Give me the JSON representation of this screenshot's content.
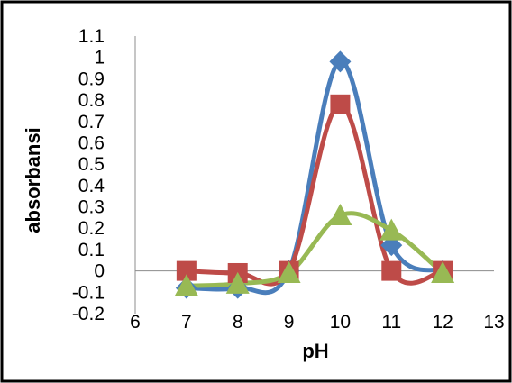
{
  "chart_data": {
    "type": "line",
    "title": "",
    "xlabel": "pH",
    "ylabel": "absorbansi",
    "xlim": [
      6,
      13
    ],
    "ylim": [
      -0.2,
      1.1
    ],
    "x_ticks": [
      "6",
      "7",
      "8",
      "9",
      "10",
      "11",
      "12",
      "13"
    ],
    "y_ticks": [
      "-0.2",
      "-0.1",
      "0",
      "0.1",
      "0.2",
      "0.3",
      "0.4",
      "0.5",
      "0.6",
      "0.7",
      "0.8",
      "0.9",
      "1",
      "1.1"
    ],
    "grid": false,
    "legend": "none",
    "smooth": true,
    "series": [
      {
        "marker": "diamond",
        "color": "#4a7ebb",
        "x": [
          7,
          8,
          9,
          10,
          11,
          12
        ],
        "y": [
          -0.08,
          -0.08,
          0.0,
          0.98,
          0.12,
          0.0
        ]
      },
      {
        "marker": "square",
        "color": "#be4b48",
        "x": [
          7,
          8,
          9,
          10,
          11,
          12
        ],
        "y": [
          0.0,
          -0.01,
          0.0,
          0.78,
          0.0,
          0.0
        ]
      },
      {
        "marker": "triangle",
        "color": "#98b954",
        "x": [
          7,
          8,
          9,
          10,
          11,
          12
        ],
        "y": [
          -0.07,
          -0.06,
          -0.01,
          0.26,
          0.19,
          -0.01
        ]
      }
    ]
  }
}
